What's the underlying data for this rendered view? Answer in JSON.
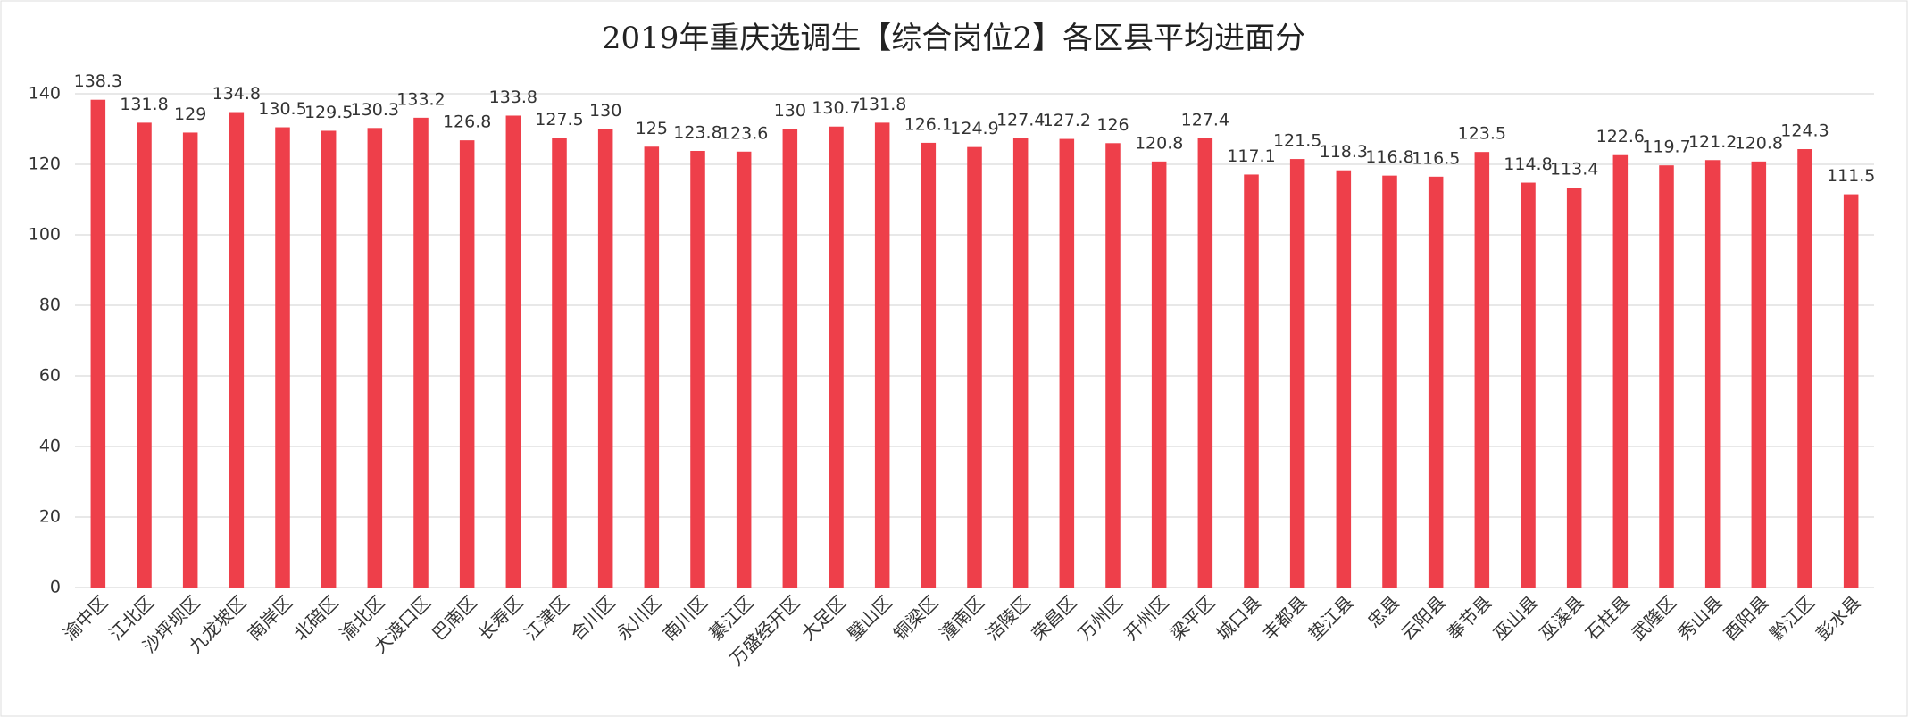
{
  "chart_data": {
    "type": "bar",
    "title": "2019年重庆选调生【综合岗位2】各区县平均进面分",
    "categories": [
      "渝中区",
      "江北区",
      "沙坪坝区",
      "九龙坡区",
      "南岸区",
      "北碚区",
      "渝北区",
      "大渡口区",
      "巴南区",
      "长寿区",
      "江津区",
      "合川区",
      "永川区",
      "南川区",
      "綦江区",
      "万盛经开区",
      "大足区",
      "璧山区",
      "铜梁区",
      "潼南区",
      "涪陵区",
      "荣昌区",
      "万州区",
      "开州区",
      "梁平区",
      "城口县",
      "丰都县",
      "垫江县",
      "忠县",
      "云阳县",
      "奉节县",
      "巫山县",
      "巫溪县",
      "石柱县",
      "武隆区",
      "秀山县",
      "酉阳县",
      "黔江区",
      "彭水县"
    ],
    "values": [
      138.3,
      131.8,
      129,
      134.8,
      130.5,
      129.5,
      130.3,
      133.2,
      126.8,
      133.8,
      127.5,
      130,
      125,
      123.8,
      123.6,
      130,
      130.7,
      131.8,
      126.1,
      124.9,
      127.4,
      127.2,
      126,
      120.8,
      127.4,
      117.1,
      121.5,
      118.3,
      116.8,
      116.5,
      123.5,
      114.8,
      113.4,
      122.6,
      119.7,
      121.2,
      120.8,
      124.3,
      111.5
    ],
    "color": "#ee3f4a",
    "ylim": [
      0,
      140
    ],
    "yticks": [
      0,
      20,
      40,
      60,
      80,
      100,
      120,
      140
    ],
    "grid": true
  }
}
